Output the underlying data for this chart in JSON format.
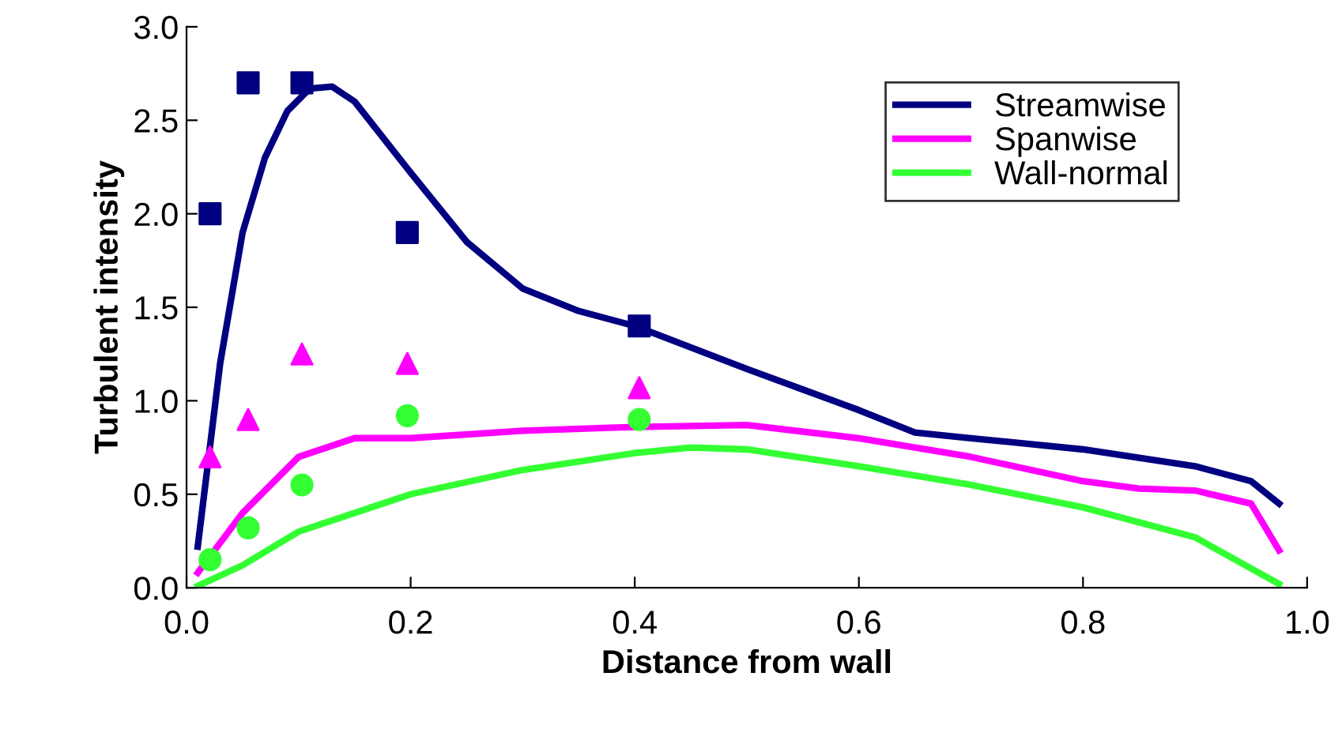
{
  "chart_data": {
    "type": "line",
    "xlabel": "Distance from wall",
    "ylabel": "Turbulent intensity",
    "xlim": [
      0.0,
      1.0
    ],
    "ylim": [
      0.0,
      3.0
    ],
    "xticks": [
      {
        "value": 0,
        "label": "0.0"
      },
      0.2,
      0.4,
      0.6,
      0.8,
      {
        "value": 1,
        "label": "1.0"
      }
    ],
    "yticks": [
      {
        "value": 0,
        "label": "0.0"
      },
      0.5,
      {
        "value": 1,
        "label": "1.0"
      },
      1.5,
      {
        "value": 2,
        "label": "2.0"
      },
      2.5,
      {
        "value": 3,
        "label": "3.0"
      }
    ],
    "grid": false,
    "legend": "top right",
    "series": [
      {
        "name": "Streamwise",
        "color": "#000080",
        "x": [
          0.01,
          0.03,
          0.05,
          0.07,
          0.09,
          0.11,
          0.13,
          0.15,
          0.2,
          0.25,
          0.3,
          0.35,
          0.4,
          0.5,
          0.6,
          0.65,
          0.7,
          0.8,
          0.9,
          0.95,
          0.975
        ],
        "values": [
          0.22,
          1.2,
          1.9,
          2.3,
          2.55,
          2.67,
          2.68,
          2.6,
          2.22,
          1.85,
          1.6,
          1.48,
          1.4,
          1.17,
          0.95,
          0.83,
          0.8,
          0.74,
          0.65,
          0.57,
          0.45
        ]
      },
      {
        "name": "Spanwise",
        "color": "#ff00ff",
        "x": [
          0.01,
          0.05,
          0.1,
          0.15,
          0.2,
          0.3,
          0.4,
          0.5,
          0.6,
          0.7,
          0.8,
          0.85,
          0.9,
          0.95,
          0.975
        ],
        "values": [
          0.08,
          0.4,
          0.7,
          0.8,
          0.8,
          0.84,
          0.86,
          0.87,
          0.8,
          0.7,
          0.57,
          0.53,
          0.52,
          0.45,
          0.2
        ]
      },
      {
        "name": "Wall-normal",
        "color": "#33ff33",
        "x": [
          0.01,
          0.05,
          0.1,
          0.2,
          0.3,
          0.4,
          0.45,
          0.5,
          0.6,
          0.7,
          0.8,
          0.9,
          0.975
        ],
        "values": [
          0.01,
          0.12,
          0.3,
          0.5,
          0.63,
          0.72,
          0.75,
          0.74,
          0.65,
          0.55,
          0.43,
          0.27,
          0.02
        ]
      },
      {
        "type": "scatter",
        "marker": "square",
        "color": "#000080",
        "x": [
          0.021,
          0.055,
          0.103,
          0.197,
          0.404
        ],
        "values": [
          2.0,
          2.7,
          2.7,
          1.9,
          1.4
        ]
      },
      {
        "type": "scatter",
        "marker": "triangle",
        "color": "#ff00ff",
        "x": [
          0.021,
          0.055,
          0.103,
          0.197,
          0.404
        ],
        "values": [
          0.7,
          0.9,
          1.25,
          1.2,
          1.07
        ]
      },
      {
        "type": "scatter",
        "marker": "circle",
        "color": "#33ff33",
        "x": [
          0.021,
          0.055,
          0.103,
          0.197,
          0.404
        ],
        "values": [
          0.15,
          0.32,
          0.55,
          0.92,
          0.9
        ]
      }
    ]
  }
}
